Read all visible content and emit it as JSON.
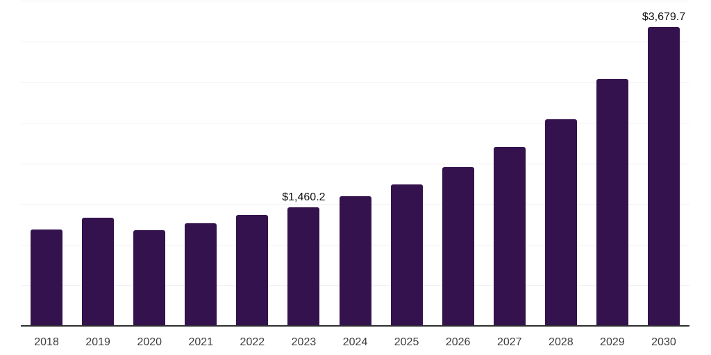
{
  "chart_data": {
    "type": "bar",
    "title": "",
    "xlabel": "",
    "ylabel": "",
    "categories": [
      "2018",
      "2019",
      "2020",
      "2021",
      "2022",
      "2023",
      "2024",
      "2025",
      "2026",
      "2027",
      "2028",
      "2029",
      "2030"
    ],
    "values": [
      1188,
      1333,
      1179,
      1261,
      1363,
      1460.2,
      1596,
      1743,
      1955,
      2197,
      2545,
      3033,
      3679.7
    ],
    "value_labels": [
      {
        "category": "2023",
        "text": "$1,460.2"
      },
      {
        "category": "2030",
        "text": "$3,679.7"
      }
    ],
    "ylim": [
      0,
      4000
    ],
    "gridline_step": 500,
    "grid": "horizontal-only",
    "legend": "none",
    "y_tick_labels": "none"
  },
  "colors": {
    "background": "#ffffff",
    "bar": "#33124d",
    "gridline": "#f0f0f2",
    "axis": "#2e2e2e",
    "tick_label": "#3d3d3d",
    "value_label": "#101010"
  }
}
